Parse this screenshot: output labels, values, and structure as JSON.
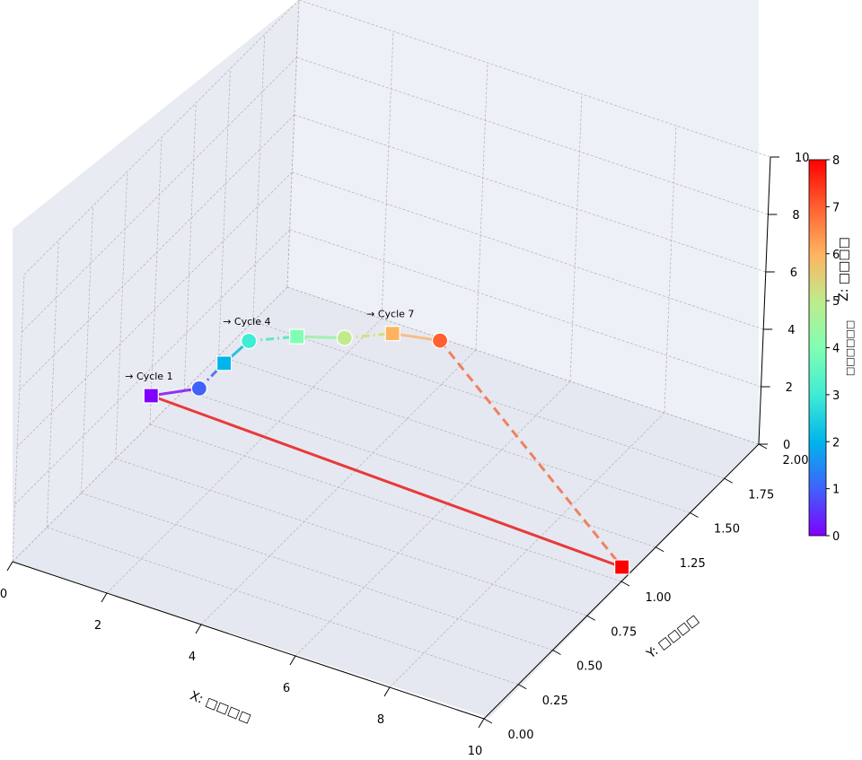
{
  "chart_data": {
    "type": "line",
    "projection": "3d",
    "xlabel": "X: □□□□",
    "ylabel": "Y: □□□□",
    "zlabel": "Z: □□□□",
    "xlim": [
      0,
      10
    ],
    "ylim": [
      0,
      2
    ],
    "zlim": [
      0,
      10
    ],
    "x_ticks": [
      "0",
      "2",
      "4",
      "6",
      "8",
      "10"
    ],
    "y_ticks": [
      "0.00",
      "0.25",
      "0.50",
      "0.75",
      "1.00",
      "1.25",
      "1.50",
      "1.75",
      "2.00"
    ],
    "z_ticks": [
      "0",
      "2",
      "4",
      "6",
      "8",
      "10"
    ],
    "grid": true,
    "points": [
      {
        "cycle": 1,
        "x": 0.0,
        "y": 1.0,
        "z": 1.0,
        "marker": "square",
        "color": "#8000ff"
      },
      {
        "cycle": 2,
        "x": 1.0,
        "y": 1.0,
        "z": 1.8,
        "marker": "circle",
        "color": "#4062fa"
      },
      {
        "cycle": 3,
        "x": 1.5,
        "y": 1.0,
        "z": 2.95,
        "marker": "square",
        "color": "#00b5eb"
      },
      {
        "cycle": 4,
        "x": 2.0,
        "y": 1.0,
        "z": 4.0,
        "marker": "circle",
        "color": "#40ecd4"
      },
      {
        "cycle": 5,
        "x": 3.0,
        "y": 1.0,
        "z": 4.7,
        "marker": "square",
        "color": "#80ffb4"
      },
      {
        "cycle": 6,
        "x": 4.0,
        "y": 1.0,
        "z": 5.2,
        "marker": "circle",
        "color": "#c0eb8d"
      },
      {
        "cycle": 7,
        "x": 5.0,
        "y": 1.0,
        "z": 5.9,
        "marker": "square",
        "color": "#ffb360"
      },
      {
        "cycle": 8,
        "x": 6.0,
        "y": 1.0,
        "z": 6.2,
        "marker": "circle",
        "color": "#ff6030"
      },
      {
        "cycle": 9,
        "x": 10.0,
        "y": 1.0,
        "z": 0.5,
        "marker": "square",
        "color": "#ff0000"
      }
    ],
    "segments": [
      {
        "from": 0,
        "to": 1,
        "style": "solid",
        "color": "#9033f5"
      },
      {
        "from": 1,
        "to": 2,
        "style": "dashdot",
        "color": "#5878e8"
      },
      {
        "from": 2,
        "to": 3,
        "style": "solid",
        "color": "#2ebde0"
      },
      {
        "from": 3,
        "to": 4,
        "style": "dashdot",
        "color": "#60e6c6"
      },
      {
        "from": 4,
        "to": 5,
        "style": "solid",
        "color": "#a2f2b0"
      },
      {
        "from": 5,
        "to": 6,
        "style": "dashdot",
        "color": "#d4e07a"
      },
      {
        "from": 6,
        "to": 7,
        "style": "solid",
        "color": "#f8be86"
      },
      {
        "from": 7,
        "to": 8,
        "style": "dashed",
        "color": "#f08060"
      },
      {
        "from": 8,
        "to": 0,
        "style": "solid",
        "color": "#e83a3a"
      }
    ],
    "annotations": [
      {
        "point": 0,
        "text": "→ Cycle 1"
      },
      {
        "point": 3,
        "text": "→ Cycle 4"
      },
      {
        "point": 6,
        "text": "→ Cycle 7"
      }
    ],
    "colorbar": {
      "label": "Z: □□□□",
      "sublabel": "□□□□□□",
      "min": 0,
      "max": 8,
      "ticks": [
        "0",
        "1",
        "2",
        "3",
        "4",
        "5",
        "6",
        "7",
        "8"
      ],
      "colormap": "rainbow"
    }
  },
  "colors": {
    "pane": "#eef0f7",
    "grid": "#b0b0b0",
    "axis": "#000000"
  }
}
